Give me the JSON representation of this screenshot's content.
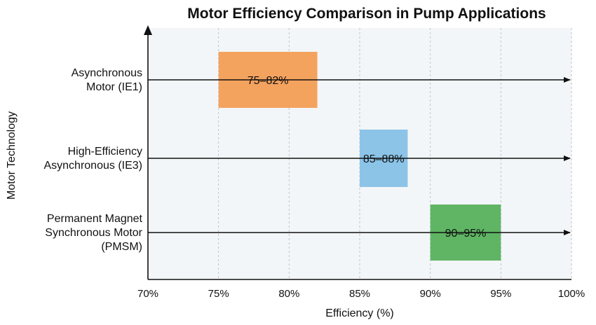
{
  "chart_data": {
    "type": "bar",
    "orientation": "horizontal-range",
    "title": "Motor Efficiency Comparison in Pump Applications",
    "xlabel": "Efficiency (%)",
    "ylabel": "Motor Technology",
    "xlim": [
      70,
      100
    ],
    "x_ticks": [
      70,
      75,
      80,
      85,
      90,
      95,
      100
    ],
    "x_tick_labels": [
      "70%",
      "75%",
      "80%",
      "85%",
      "90%",
      "95%",
      "100%"
    ],
    "grid": true,
    "categories": [
      {
        "label_lines": [
          "Asynchronous",
          "Motor (IE1)"
        ],
        "range": [
          75,
          82
        ],
        "data_label": "75–82%",
        "color": "#f4a35f"
      },
      {
        "label_lines": [
          "High-Efficiency",
          "Asynchronous (IE3)"
        ],
        "range": [
          85,
          88.4
        ],
        "data_label": "85–88%",
        "color": "#8cc4e8"
      },
      {
        "label_lines": [
          "Permanent Magnet",
          "Synchronous Motor",
          "(PMSM)"
        ],
        "range": [
          90,
          95
        ],
        "data_label": "90–95%",
        "color": "#5fb564"
      }
    ],
    "colors": {
      "background": "#f3f6f8",
      "grid": "#b8c6d0",
      "axis": "#111111"
    }
  }
}
